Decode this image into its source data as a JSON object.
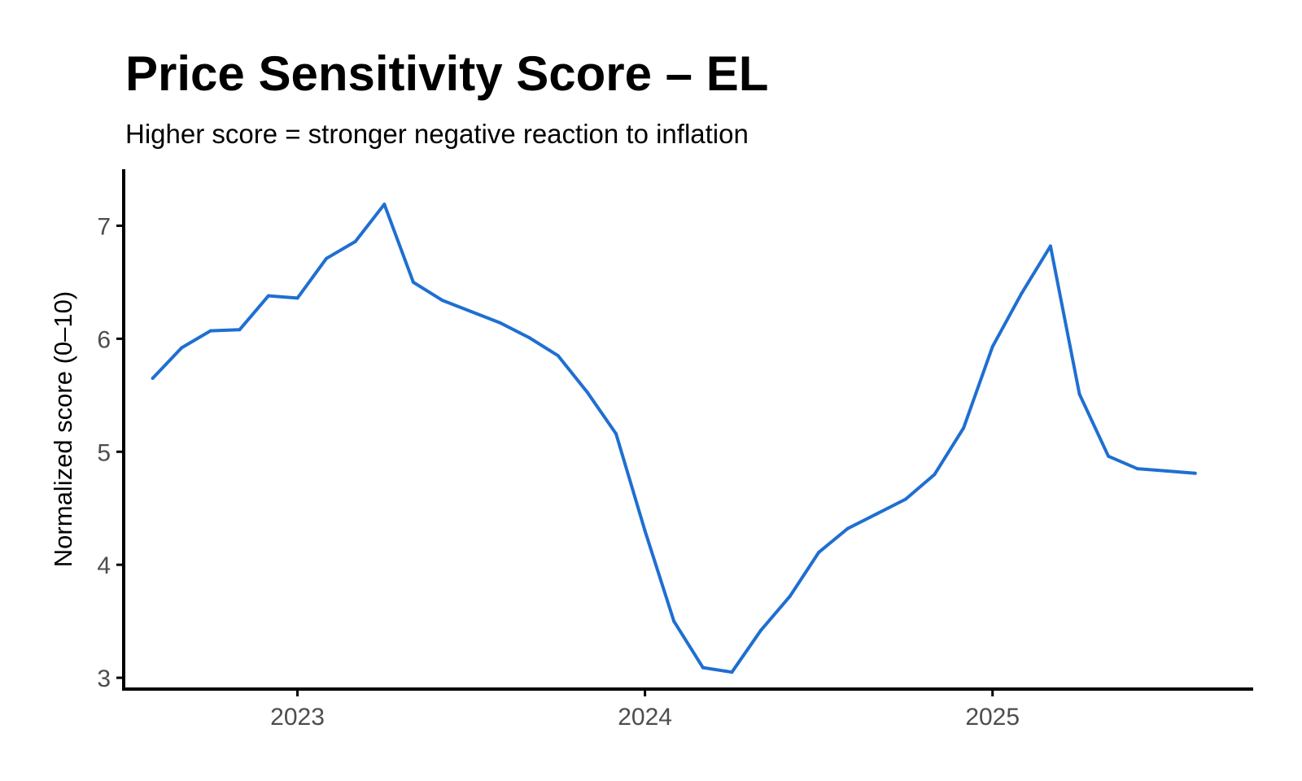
{
  "title": "Price Sensitivity Score – EL",
  "subtitle": "Higher score = stronger negative reaction to inflation",
  "chart_data": {
    "type": "line",
    "title": "Price Sensitivity Score – EL",
    "subtitle": "Higher score = stronger negative reaction to inflation",
    "xlabel": "",
    "ylabel": "Normalized score (0–10)",
    "x": [
      "2022-08",
      "2022-09",
      "2022-10",
      "2022-11",
      "2022-12",
      "2023-01",
      "2023-02",
      "2023-03",
      "2023-04",
      "2023-05",
      "2023-06",
      "2023-07",
      "2023-08",
      "2023-09",
      "2023-10",
      "2023-11",
      "2023-12",
      "2024-01",
      "2024-02",
      "2024-03",
      "2024-04",
      "2024-05",
      "2024-06",
      "2024-07",
      "2024-08",
      "2024-09",
      "2024-10",
      "2024-11",
      "2024-12",
      "2025-01",
      "2025-02",
      "2025-03",
      "2025-04",
      "2025-05",
      "2025-06",
      "2025-07",
      "2025-08"
    ],
    "series": [
      {
        "name": "",
        "color": "#1f6fd1",
        "values": [
          5.65,
          5.92,
          6.07,
          6.08,
          6.38,
          6.36,
          6.71,
          6.86,
          7.19,
          6.5,
          6.34,
          6.24,
          6.14,
          6.01,
          5.85,
          5.53,
          5.16,
          4.3,
          3.5,
          3.09,
          3.05,
          3.42,
          3.72,
          4.11,
          4.32,
          4.45,
          4.58,
          4.8,
          5.21,
          5.93,
          6.4,
          6.82,
          5.51,
          4.96,
          4.85,
          4.83,
          4.81
        ]
      }
    ],
    "x_ticks": [
      "2023",
      "2024",
      "2025"
    ],
    "x_tick_dates": [
      "2023-01",
      "2024-01",
      "2025-01"
    ],
    "y_ticks": [
      3,
      4,
      5,
      6,
      7
    ],
    "xlim": [
      "2022-07",
      "2025-10"
    ],
    "ylim": [
      2.9,
      7.5
    ],
    "grid": false,
    "legend": "none"
  }
}
